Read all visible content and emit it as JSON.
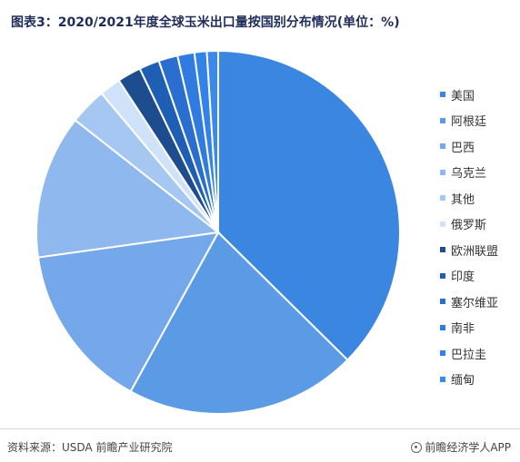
{
  "header": {
    "title": "图表3：2020/2021年度全球玉米出口量按国别分布情况(单位：%)"
  },
  "chart_data": {
    "type": "pie",
    "categories": [
      "美国",
      "阿根廷",
      "巴西",
      "乌克兰",
      "其他",
      "俄罗斯",
      "欧洲联盟",
      "印度",
      "塞尔维亚",
      "南非",
      "巴拉圭",
      "缅甸"
    ],
    "values": [
      37.4,
      20.6,
      14.8,
      12.8,
      3.3,
      1.9,
      2.1,
      1.8,
      1.7,
      1.5,
      1.1,
      1.0
    ],
    "colors": [
      "#3a86e0",
      "#5b9be6",
      "#74a8ea",
      "#8fb8ef",
      "#a5c7f2",
      "#cfe2fa",
      "#1d4d8f",
      "#1f5fb3",
      "#2a6fd0",
      "#2f7be0",
      "#3282ea",
      "#3a8aee"
    ],
    "legend_position": "right",
    "start_angle_deg": 0,
    "direction": "clockwise"
  },
  "footer": {
    "source": "资料来源：USDA 前瞻产业研究院",
    "brand": "前瞻经济学人APP"
  }
}
